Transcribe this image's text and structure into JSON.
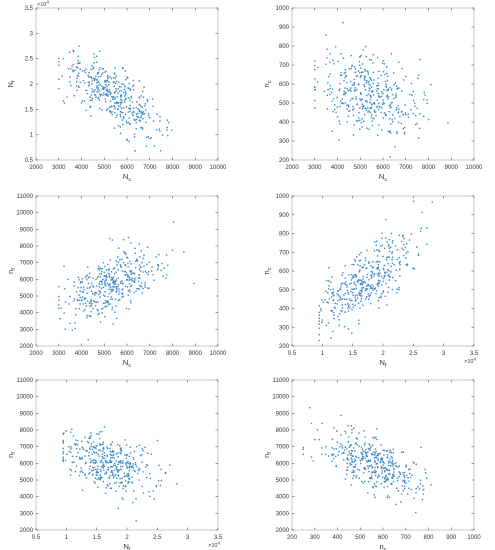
{
  "chart_data": [
    {
      "type": "scatter",
      "xlabel": "N",
      "xlabel_sub": "c",
      "ylabel": "N",
      "ylabel_sub": "f",
      "xlim": [
        2000,
        10000
      ],
      "ylim": [
        0.5,
        3.5
      ],
      "xticks": [
        2000,
        3000,
        4000,
        5000,
        6000,
        7000,
        8000,
        9000,
        10000
      ],
      "yticks": [
        0.5,
        1,
        1.5,
        2,
        2.5,
        3,
        3.5
      ],
      "yticklabels": [
        "0.5",
        "1",
        "1.5",
        "2",
        "2.5",
        "3",
        "3.5"
      ],
      "y_multiplier": "×10",
      "y_multiplier_exp": "4",
      "trend": {
        "x_mean": 5400,
        "x_sd": 1100,
        "x_min": 3000,
        "x_max": 9600,
        "slope": -0.00028,
        "intercept": 3.28,
        "noise": 0.26
      },
      "n_points": 400,
      "grid": false,
      "marker_color": "#3a86c8"
    },
    {
      "type": "scatter",
      "xlabel": "N",
      "xlabel_sub": "c",
      "ylabel": "n",
      "ylabel_sub": "c",
      "xlim": [
        2000,
        10000
      ],
      "ylim": [
        200,
        1000
      ],
      "xticks": [
        2000,
        3000,
        4000,
        5000,
        6000,
        7000,
        8000,
        9000,
        10000
      ],
      "yticks": [
        200,
        300,
        400,
        500,
        600,
        700,
        800,
        900,
        1000
      ],
      "trend": {
        "x_mean": 5400,
        "x_sd": 1100,
        "x_min": 3000,
        "x_max": 9600,
        "slope": -0.035,
        "intercept": 740,
        "noise": 105
      },
      "n_points": 400,
      "grid": false,
      "marker_color": "#3a86c8"
    },
    {
      "type": "scatter",
      "xlabel": "N",
      "xlabel_sub": "c",
      "ylabel": "n",
      "ylabel_sub": "f",
      "xlim": [
        2000,
        10000
      ],
      "ylim": [
        2000,
        11000
      ],
      "xticks": [
        2000,
        3000,
        4000,
        5000,
        6000,
        7000,
        8000,
        9000,
        10000
      ],
      "yticks": [
        2000,
        3000,
        4000,
        5000,
        6000,
        7000,
        8000,
        9000,
        10000,
        11000
      ],
      "trend": {
        "x_mean": 5400,
        "x_sd": 1100,
        "x_min": 3000,
        "x_max": 9600,
        "slope": 0.62,
        "intercept": 2350,
        "noise": 900
      },
      "n_points": 400,
      "grid": false,
      "marker_color": "#3a86c8"
    },
    {
      "type": "scatter",
      "xlabel": "N",
      "xlabel_sub": "f",
      "ylabel": "n",
      "ylabel_sub": "c",
      "xlim": [
        0.5,
        3.5
      ],
      "ylim": [
        200,
        1000
      ],
      "xticks": [
        0.5,
        1,
        1.5,
        2,
        2.5,
        3,
        3.5
      ],
      "xticklabels": [
        "0.5",
        "1",
        "1.5",
        "2",
        "2.5",
        "3",
        "3.5"
      ],
      "yticks": [
        200,
        300,
        400,
        500,
        600,
        700,
        800,
        900,
        1000
      ],
      "x_multiplier": "×10",
      "x_multiplier_exp": "4",
      "trend": {
        "x_mean": 1.7,
        "x_sd": 0.38,
        "x_min": 0.95,
        "x_max": 3.0,
        "slope": 235,
        "intercept": 148,
        "noise": 85
      },
      "n_points": 400,
      "grid": false,
      "marker_color": "#3a86c8"
    },
    {
      "type": "scatter",
      "xlabel": "N",
      "xlabel_sub": "f",
      "ylabel": "n",
      "ylabel_sub": "f",
      "xlim": [
        0.5,
        3.5
      ],
      "ylim": [
        2000,
        11000
      ],
      "xticks": [
        0.5,
        1,
        1.5,
        2,
        2.5,
        3,
        3.5
      ],
      "xticklabels": [
        "0.5",
        "1",
        "1.5",
        "2",
        "2.5",
        "3",
        "3.5"
      ],
      "yticks": [
        2000,
        3000,
        4000,
        5000,
        6000,
        7000,
        8000,
        9000,
        10000,
        11000
      ],
      "x_multiplier": "×10",
      "x_multiplier_exp": "4",
      "trend": {
        "x_mean": 1.7,
        "x_sd": 0.38,
        "x_min": 0.95,
        "x_max": 3.0,
        "slope": -1350,
        "intercept": 8300,
        "noise": 850
      },
      "n_points": 400,
      "grid": false,
      "marker_color": "#3a86c8"
    },
    {
      "type": "scatter",
      "xlabel": "n",
      "xlabel_sub": "c",
      "ylabel": "n",
      "ylabel_sub": "f",
      "xlim": [
        200,
        1000
      ],
      "ylim": [
        2000,
        11000
      ],
      "xticks": [
        200,
        300,
        400,
        500,
        600,
        700,
        800,
        900,
        1000
      ],
      "yticks": [
        2000,
        3000,
        4000,
        5000,
        6000,
        7000,
        8000,
        9000,
        10000,
        11000
      ],
      "trend": {
        "x_mean": 560,
        "x_sd": 110,
        "x_min": 250,
        "x_max": 960,
        "slope": -5.0,
        "intercept": 8800,
        "noise": 750
      },
      "n_points": 400,
      "grid": false,
      "marker_color": "#3a86c8"
    }
  ]
}
